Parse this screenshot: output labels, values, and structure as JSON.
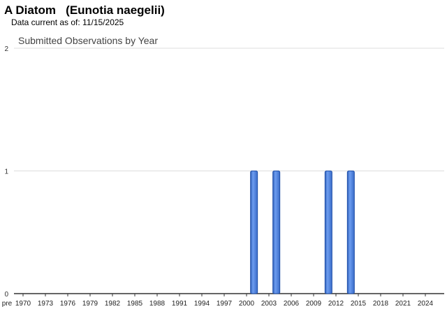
{
  "header": {
    "title": "A Diatom   (Eunotia naegelii)",
    "subtitle": "Data current as of: 11/15/2025"
  },
  "chart_data": {
    "type": "bar",
    "title": "Submitted Observations by Year",
    "categories": [
      "pre",
      "1970",
      "1971",
      "1972",
      "1973",
      "1974",
      "1975",
      "1976",
      "1977",
      "1978",
      "1979",
      "1980",
      "1981",
      "1982",
      "1983",
      "1984",
      "1985",
      "1986",
      "1987",
      "1988",
      "1989",
      "1990",
      "1991",
      "1992",
      "1993",
      "1994",
      "1995",
      "1996",
      "1997",
      "1998",
      "1999",
      "2000",
      "2001",
      "2002",
      "2003",
      "2004",
      "2005",
      "2006",
      "2007",
      "2008",
      "2009",
      "2010",
      "2011",
      "2012",
      "2013",
      "2014",
      "2015",
      "2016",
      "2017",
      "2018",
      "2019",
      "2020",
      "2021",
      "2022",
      "2023",
      "2024",
      "2025",
      "2026"
    ],
    "x_tick_labels": [
      "pre",
      "1970",
      "1973",
      "1976",
      "1979",
      "1982",
      "1985",
      "1988",
      "1991",
      "1994",
      "1997",
      "2000",
      "2003",
      "2006",
      "2009",
      "2012",
      "2015",
      "2018",
      "2021",
      "2024"
    ],
    "values": {
      "2001": 1,
      "2004": 1,
      "2011": 1,
      "2014": 1
    },
    "ylim": [
      0,
      2
    ],
    "y_ticks": [
      "0",
      "1",
      "2"
    ],
    "grid": true,
    "bar_color": "#4a7fd8",
    "xlabel": "",
    "ylabel": ""
  }
}
